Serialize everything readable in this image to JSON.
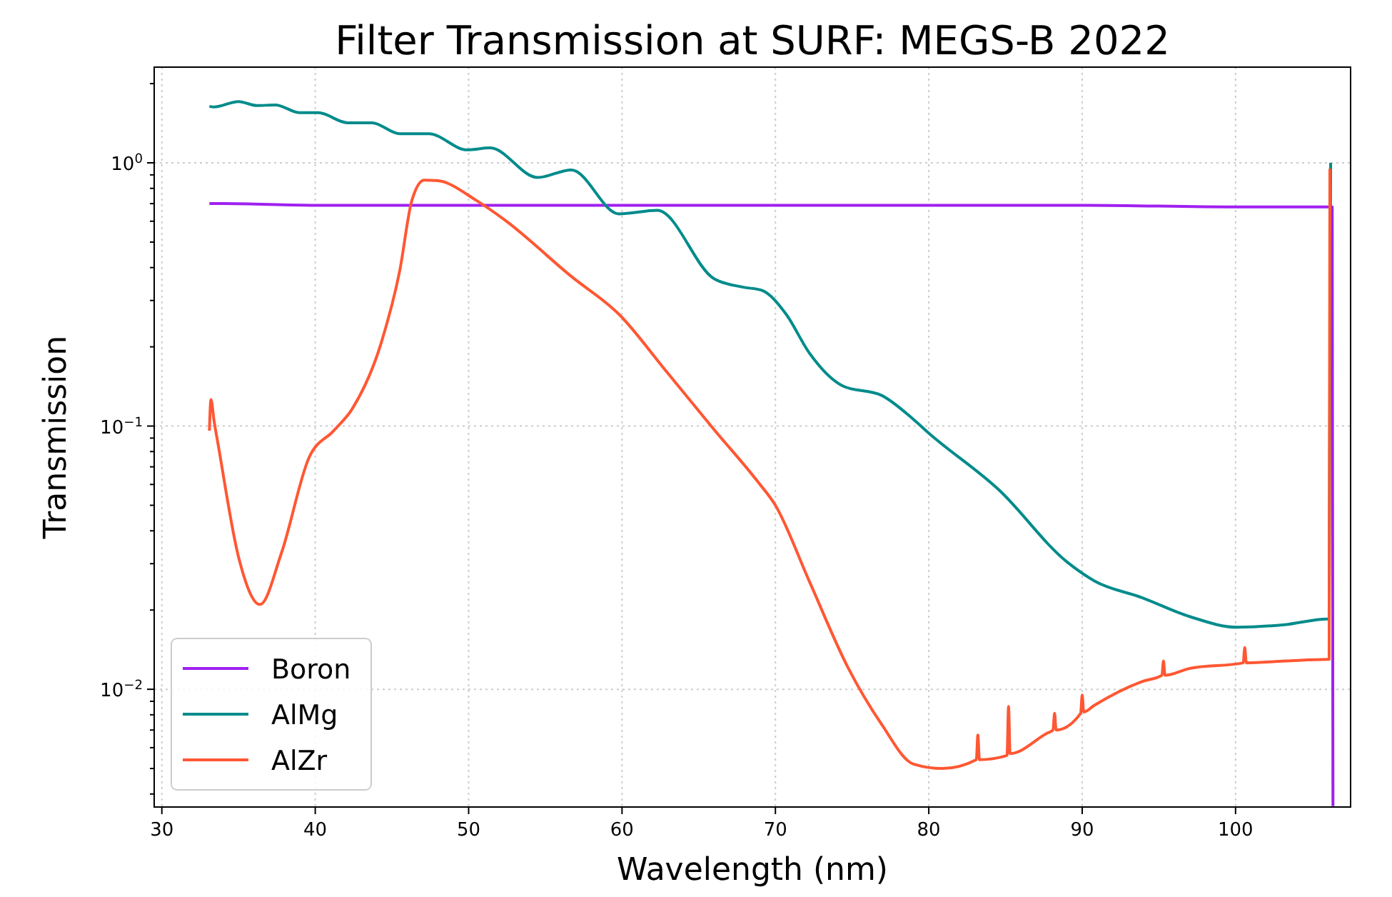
{
  "chart_data": {
    "type": "line",
    "title": "Filter Transmission at SURF: MEGS-B 2022",
    "xlabel": "Wavelength (nm)",
    "ylabel": "Transmission",
    "log": "y",
    "grid": true,
    "legend": "bottom left",
    "line_style": "solid",
    "xlim": [
      29.5,
      107.5
    ],
    "xticks": [
      30,
      40,
      50,
      60,
      70,
      80,
      90,
      100
    ],
    "ylim": [
      0.00357,
      2.31
    ],
    "yticks": [
      {
        "value": 0.01,
        "label": "10$^{−2}$"
      },
      {
        "value": 0.1,
        "label": "10$^{−1}$"
      },
      {
        "value": 1,
        "label": "10$^{0}$"
      },
      {
        "value": 0.004,
        "label": null
      },
      {
        "value": 0.005,
        "label": null
      },
      {
        "value": 0.006,
        "label": null
      },
      {
        "value": 0.007,
        "label": null
      },
      {
        "value": 0.008,
        "label": null
      },
      {
        "value": 0.009,
        "label": null
      },
      {
        "value": 0.02,
        "label": null
      },
      {
        "value": 0.03,
        "label": null
      },
      {
        "value": 0.04,
        "label": null
      },
      {
        "value": 0.05,
        "label": null
      },
      {
        "value": 0.06,
        "label": null
      },
      {
        "value": 0.07,
        "label": null
      },
      {
        "value": 0.08,
        "label": null
      },
      {
        "value": 0.09,
        "label": null
      },
      {
        "value": 0.2,
        "label": null
      },
      {
        "value": 0.3,
        "label": null
      },
      {
        "value": 0.4,
        "label": null
      },
      {
        "value": 0.5,
        "label": null
      },
      {
        "value": 0.6,
        "label": null
      },
      {
        "value": 0.7,
        "label": null
      },
      {
        "value": 0.8,
        "label": null
      },
      {
        "value": 0.9,
        "label": null
      },
      {
        "value": 2,
        "label": null
      }
    ],
    "series": [
      {
        "name": "Boron",
        "color": "#a020f0",
        "x": [
          33.1,
          34,
          40,
          50,
          60,
          70,
          80,
          90,
          100,
          106.3,
          106.35
        ],
        "values": [
          0.7,
          0.7,
          0.69,
          0.69,
          0.69,
          0.69,
          0.69,
          0.69,
          0.68,
          0.68,
          0.0036
        ]
      },
      {
        "name": "AlMg",
        "color": "#008b8b",
        "x": [
          33.1,
          33.4,
          35.0,
          36.2,
          37.4,
          39.0,
          40.2,
          42.1,
          43.7,
          45.5,
          47.4,
          49.9,
          51.4,
          54.5,
          56.7,
          59.8,
          62.3,
          66.0,
          67.9,
          69.1,
          70.7,
          72.2,
          74.4,
          76.9,
          79.0,
          80.0,
          84.6,
          89.0,
          90.8,
          93.9,
          97.0,
          100.1,
          103.2,
          106.0,
          106.1,
          106.2
        ],
        "values": [
          1.64,
          1.63,
          1.71,
          1.65,
          1.66,
          1.55,
          1.55,
          1.42,
          1.42,
          1.29,
          1.29,
          1.12,
          1.14,
          0.88,
          0.94,
          0.64,
          0.66,
          0.363,
          0.337,
          0.328,
          0.266,
          0.19,
          0.142,
          0.131,
          0.106,
          0.094,
          0.057,
          0.0305,
          0.0258,
          0.0223,
          0.0189,
          0.0172,
          0.0176,
          0.0185,
          0.0185,
          1.0
        ]
      },
      {
        "name": "AlZr",
        "color": "#ff5733",
        "x": [
          33.1,
          33.2,
          33.4,
          33.7,
          35.0,
          36.4,
          37.8,
          39.6,
          41.2,
          42.4,
          44.3,
          45.5,
          46.3,
          47.1,
          48.0,
          50.5,
          52.3,
          56.7,
          59.8,
          62.9,
          66.0,
          68.8,
          70.0,
          72.2,
          74.7,
          76.9,
          79.0,
          80.9,
          83.1,
          83.2,
          83.3,
          85.1,
          85.2,
          85.3,
          87.7,
          88.1,
          88.2,
          88.3,
          89.9,
          90.0,
          90.1,
          90.8,
          93.9,
          95.2,
          95.3,
          95.4,
          97.0,
          100.5,
          100.6,
          100.7,
          103.2,
          106.0,
          106.1,
          106.15
        ],
        "values": [
          0.096,
          0.126,
          0.105,
          0.083,
          0.0318,
          0.021,
          0.033,
          0.076,
          0.096,
          0.116,
          0.207,
          0.387,
          0.72,
          0.86,
          0.855,
          0.72,
          0.61,
          0.37,
          0.266,
          0.161,
          0.097,
          0.062,
          0.05,
          0.0258,
          0.0122,
          0.0074,
          0.0052,
          0.005,
          0.0054,
          0.0067,
          0.0054,
          0.0056,
          0.0086,
          0.0057,
          0.0068,
          0.007,
          0.0081,
          0.007,
          0.0081,
          0.0095,
          0.0082,
          0.0087,
          0.0107,
          0.0113,
          0.0128,
          0.0113,
          0.012,
          0.0126,
          0.0144,
          0.0126,
          0.0128,
          0.013,
          0.013,
          0.95
        ]
      }
    ]
  }
}
